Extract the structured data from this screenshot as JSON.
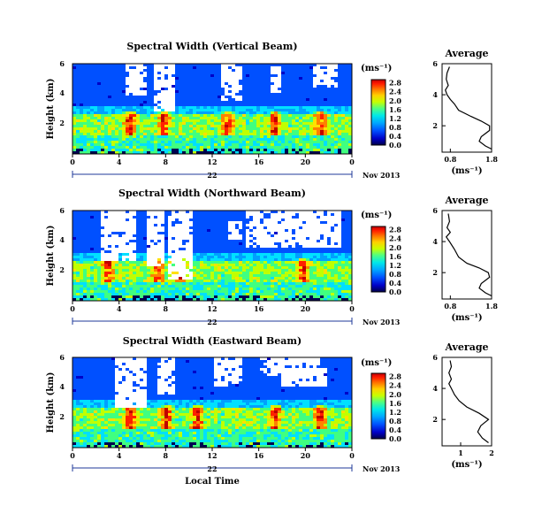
{
  "chart_data": [
    {
      "type": "heatmap",
      "title": "Spectral Width (Vertical Beam)",
      "xlabel": "",
      "ylabel": "Height (km)",
      "xticks": [
        "0",
        "4",
        "8",
        "12",
        "16",
        "20",
        "0"
      ],
      "yticks": [
        "2",
        "4",
        "6"
      ],
      "date_label": "22",
      "month_label": "Nov 2013",
      "colorbar": {
        "unit": "(ms⁻¹)",
        "ticks": [
          "0.0",
          "0.4",
          "0.8",
          "1.2",
          "1.6",
          "2.0",
          "2.4",
          "2.8"
        ]
      },
      "profile": {
        "title": "Average",
        "xlabel": "(ms⁻¹)",
        "xticks": [
          "0.8",
          "1.8"
        ],
        "yticks": [
          "2",
          "4",
          "6"
        ],
        "xlim": [
          0.6,
          1.8
        ],
        "ylim": [
          0.3,
          6.0
        ],
        "points": [
          [
            1.8,
            0.5
          ],
          [
            1.65,
            0.7
          ],
          [
            1.5,
            1.0
          ],
          [
            1.55,
            1.3
          ],
          [
            1.75,
            1.7
          ],
          [
            1.75,
            2.0
          ],
          [
            1.55,
            2.3
          ],
          [
            1.3,
            2.6
          ],
          [
            1.0,
            3.0
          ],
          [
            0.9,
            3.4
          ],
          [
            0.8,
            3.7
          ],
          [
            0.72,
            4.0
          ],
          [
            0.68,
            4.3
          ],
          [
            0.75,
            4.6
          ],
          [
            0.7,
            5.0
          ],
          [
            0.72,
            5.4
          ],
          [
            0.78,
            5.8
          ]
        ]
      }
    },
    {
      "type": "heatmap",
      "title": "Spectral Width (Northward Beam)",
      "xlabel": "",
      "ylabel": "Height (km)",
      "xticks": [
        "0",
        "4",
        "8",
        "12",
        "16",
        "20",
        "0"
      ],
      "yticks": [
        "2",
        "4",
        "6"
      ],
      "date_label": "22",
      "month_label": "Nov 2013",
      "colorbar": {
        "unit": "(ms⁻¹)",
        "ticks": [
          "0.0",
          "0.4",
          "0.8",
          "1.2",
          "1.6",
          "2.0",
          "2.4",
          "2.8"
        ]
      },
      "profile": {
        "title": "Average",
        "xlabel": "(ms⁻¹)",
        "xticks": [
          "0.8",
          "1.8"
        ],
        "yticks": [
          "2",
          "4",
          "6"
        ],
        "xlim": [
          0.6,
          1.8
        ],
        "ylim": [
          0.3,
          6.0
        ],
        "points": [
          [
            1.8,
            0.5
          ],
          [
            1.65,
            0.7
          ],
          [
            1.5,
            1.0
          ],
          [
            1.55,
            1.3
          ],
          [
            1.75,
            1.7
          ],
          [
            1.72,
            2.0
          ],
          [
            1.5,
            2.3
          ],
          [
            1.2,
            2.6
          ],
          [
            1.0,
            3.0
          ],
          [
            0.9,
            3.5
          ],
          [
            0.78,
            4.0
          ],
          [
            0.7,
            4.3
          ],
          [
            0.8,
            4.6
          ],
          [
            0.72,
            4.9
          ],
          [
            0.78,
            5.3
          ],
          [
            0.75,
            5.8
          ]
        ]
      }
    },
    {
      "type": "heatmap",
      "title": "Spectral Width (Eastward Beam)",
      "xlabel": "Local Time",
      "ylabel": "Height (km)",
      "xticks": [
        "0",
        "4",
        "8",
        "12",
        "16",
        "20",
        "0"
      ],
      "yticks": [
        "2",
        "4",
        "6"
      ],
      "date_label": "22",
      "month_label": "Nov 2013",
      "colorbar": {
        "unit": "(ms⁻¹)",
        "ticks": [
          "0.0",
          "0.4",
          "0.8",
          "1.2",
          "1.6",
          "2.0",
          "2.4",
          "2.8"
        ]
      },
      "profile": {
        "title": "Average",
        "xlabel": "(ms⁻¹)",
        "xticks": [
          "1",
          "2"
        ],
        "yticks": [
          "2",
          "4",
          "6"
        ],
        "xlim": [
          0.4,
          2.0
        ],
        "ylim": [
          0.3,
          6.0
        ],
        "points": [
          [
            1.9,
            0.5
          ],
          [
            1.7,
            0.8
          ],
          [
            1.55,
            1.2
          ],
          [
            1.65,
            1.6
          ],
          [
            1.9,
            2.0
          ],
          [
            1.6,
            2.4
          ],
          [
            1.2,
            2.8
          ],
          [
            0.95,
            3.2
          ],
          [
            0.8,
            3.6
          ],
          [
            0.7,
            4.0
          ],
          [
            0.62,
            4.3
          ],
          [
            0.7,
            4.6
          ],
          [
            0.62,
            5.0
          ],
          [
            0.7,
            5.4
          ],
          [
            0.66,
            5.8
          ]
        ]
      }
    }
  ],
  "colors": {
    "scale": [
      "#000050",
      "#0000c8",
      "#0050ff",
      "#00a0ff",
      "#00e0ff",
      "#40ff80",
      "#c0ff00",
      "#ffe000",
      "#ff8000",
      "#ff2000",
      "#c00000"
    ]
  }
}
